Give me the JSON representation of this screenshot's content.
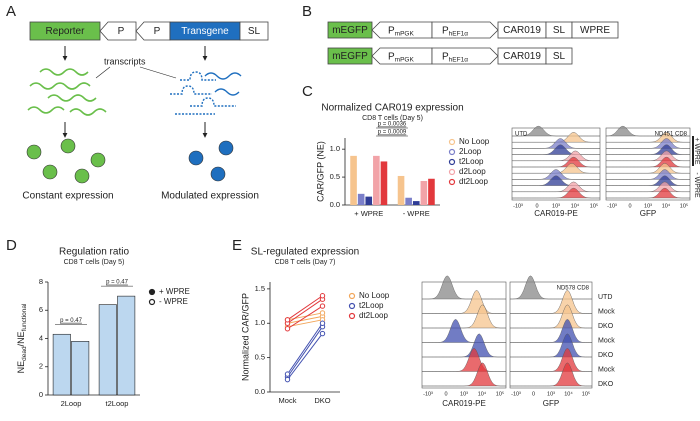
{
  "panels": {
    "A": {
      "letter": "A",
      "reporter": "Reporter",
      "promoter": "P",
      "transgene": "Transgene",
      "sl": "SL",
      "transcripts": "transcripts",
      "left_caption": "Constant expression",
      "right_caption": "Modulated expression"
    },
    "B": {
      "letter": "B",
      "gfp": "mEGFP",
      "p1": "P",
      "p1_sub": "mPGK",
      "p2": "P",
      "p2_sub": "hEF1α",
      "car": "CAR019",
      "sl": "SL",
      "wpre": "WPRE"
    },
    "C": {
      "letter": "C",
      "flow": {
        "sample": "UTD",
        "donor": "ND451 CD8",
        "x1": "CAR019-PE",
        "x2": "GFP",
        "side1": "+ WPRE",
        "side2": "- WPRE"
      }
    },
    "D": {
      "letter": "D"
    },
    "E": {
      "letter": "E",
      "flow": {
        "donor": "ND578 CD8",
        "x1": "CAR019-PE",
        "x2": "GFP",
        "rows": [
          "UTD",
          "Mock",
          "DKO",
          "Mock",
          "DKO",
          "Mock",
          "DKO"
        ]
      }
    }
  },
  "flow_ticks": [
    "-10³",
    "0",
    "10³",
    "10⁴",
    "10⁵"
  ],
  "chart_data": [
    {
      "type": "bar",
      "title": "Normalized CAR019 expression",
      "subtitle": "CD8 T cells (Day 5)",
      "ylabel": "CAR/GFP (NE)",
      "categories": [
        "+ WPRE",
        "- WPRE"
      ],
      "series": [
        {
          "name": "No Loop",
          "color": "#f6c48e",
          "values": [
            0.88,
            0.52
          ]
        },
        {
          "name": "2Loop",
          "color": "#7b7fc9",
          "values": [
            0.2,
            0.13
          ]
        },
        {
          "name": "t2Loop",
          "color": "#2f3c96",
          "values": [
            0.15,
            0.07
          ]
        },
        {
          "name": "d2Loop",
          "color": "#f2a3a8",
          "values": [
            0.88,
            0.43
          ]
        },
        {
          "name": "dt2Loop",
          "color": "#e2383c",
          "values": [
            0.78,
            0.47
          ]
        }
      ],
      "ylim": [
        0,
        1.2
      ],
      "yticks": [
        {
          "value": 0,
          "label": "0.0"
        },
        {
          "value": 0.5,
          "label": "0.5"
        },
        {
          "value": 1,
          "label": "1.0"
        }
      ],
      "annotations": [
        "p = 0.0036",
        "p = 0.0009"
      ],
      "legend": "right"
    },
    {
      "type": "bar",
      "title": "Regulation ratio",
      "subtitle": "CD8 T cells (Day 5)",
      "ylabel_parts": [
        "NE",
        "dead",
        "/NE",
        "functional"
      ],
      "categories": [
        "2Loop",
        "t2Loop"
      ],
      "color": "#bcd7ef",
      "series": [
        {
          "name": "+ WPRE",
          "marker": "filled",
          "values": [
            4.3,
            6.4
          ]
        },
        {
          "name": "- WPRE",
          "marker": "open",
          "values": [
            3.8,
            7.0
          ]
        }
      ],
      "ylim": [
        0,
        8
      ],
      "yticks": [
        0,
        2,
        4,
        6,
        8
      ],
      "annotations": [
        "p = 0.47",
        "p = 0.47"
      ],
      "legend": "right"
    },
    {
      "type": "line",
      "title": "SL-regulated expression",
      "subtitle": "CD8 T cells (Day 7)",
      "ylabel": "Normalized CAR/GFP",
      "categories": [
        "Mock",
        "DKO"
      ],
      "series": [
        {
          "name": "No Loop",
          "color": "#f2a65a",
          "values": [
            [
              1.0,
              1.1
            ],
            [
              0.95,
              1.05
            ],
            [
              1.05,
              1.15
            ]
          ]
        },
        {
          "name": "t2Loop",
          "color": "#4150b0",
          "values": [
            [
              0.22,
              0.95
            ],
            [
              0.18,
              0.85
            ],
            [
              0.26,
              1.0
            ]
          ]
        },
        {
          "name": "dt2Loop",
          "color": "#e2383c",
          "values": [
            [
              1.0,
              1.35
            ],
            [
              0.92,
              1.25
            ],
            [
              1.05,
              1.4
            ]
          ]
        }
      ],
      "ylim": [
        0,
        1.6
      ],
      "yticks": [
        {
          "value": 0,
          "label": "0.0"
        },
        {
          "value": 0.5,
          "label": "0.5"
        },
        {
          "value": 1,
          "label": "1.0"
        },
        {
          "value": 1.5,
          "label": "1.5"
        }
      ],
      "legend": "right"
    }
  ]
}
